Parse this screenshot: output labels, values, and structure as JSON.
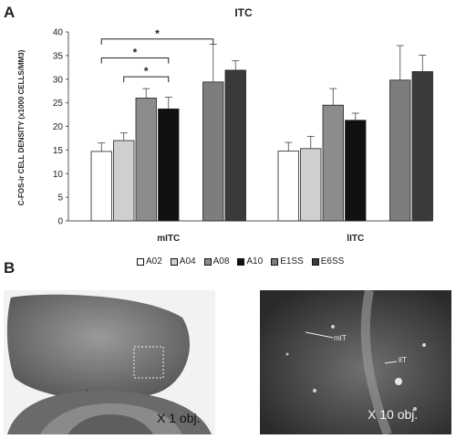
{
  "panel_a_label": "A",
  "panel_b_label": "B",
  "chart_data": {
    "type": "bar",
    "title": "ITC",
    "ylabel": "C-FOS-ir CELL DENSITY (x1000 CELLS/MM3)",
    "xlabel": "",
    "ylim": [
      0,
      40
    ],
    "yticks": [
      "0",
      "5",
      "10",
      "15",
      "20",
      "25",
      "30",
      "35",
      "40"
    ],
    "categories": [
      "mITC",
      "lITC"
    ],
    "legend_position": "bottom",
    "series": [
      {
        "name": "A02",
        "color": "#ffffff",
        "values": [
          14.7,
          14.8
        ],
        "errors": [
          1.8,
          1.8
        ]
      },
      {
        "name": "A04",
        "color": "#cfcfcf",
        "values": [
          17.0,
          15.3
        ],
        "errors": [
          1.6,
          2.6
        ]
      },
      {
        "name": "A08",
        "color": "#8c8c8c",
        "values": [
          26.0,
          24.5
        ],
        "errors": [
          2.0,
          3.5
        ]
      },
      {
        "name": "A10",
        "color": "#111111",
        "values": [
          23.7,
          21.3
        ],
        "errors": [
          2.5,
          1.5
        ]
      },
      {
        "name": "E1SS",
        "color": "#7d7d7d",
        "values": [
          29.4,
          29.8
        ],
        "errors": [
          8.0,
          7.3
        ]
      },
      {
        "name": "E6SS",
        "color": "#3a3a3a",
        "values": [
          31.9,
          31.6
        ],
        "errors": [
          2.0,
          3.5
        ]
      }
    ],
    "significance": [
      {
        "from_series": 0,
        "to_series": 4,
        "category": 0,
        "label": "*",
        "level": 38.5
      },
      {
        "from_series": 0,
        "to_series": 3,
        "category": 0,
        "label": "*",
        "level": 34.5
      },
      {
        "from_series": 1,
        "to_series": 3,
        "category": 0,
        "label": "*",
        "level": 30.5
      }
    ]
  },
  "micrographs": {
    "left_caption": "X 1 obj.",
    "right_caption": "X 10 obj.",
    "right_region_labels": [
      "mIT",
      "lIT"
    ]
  }
}
